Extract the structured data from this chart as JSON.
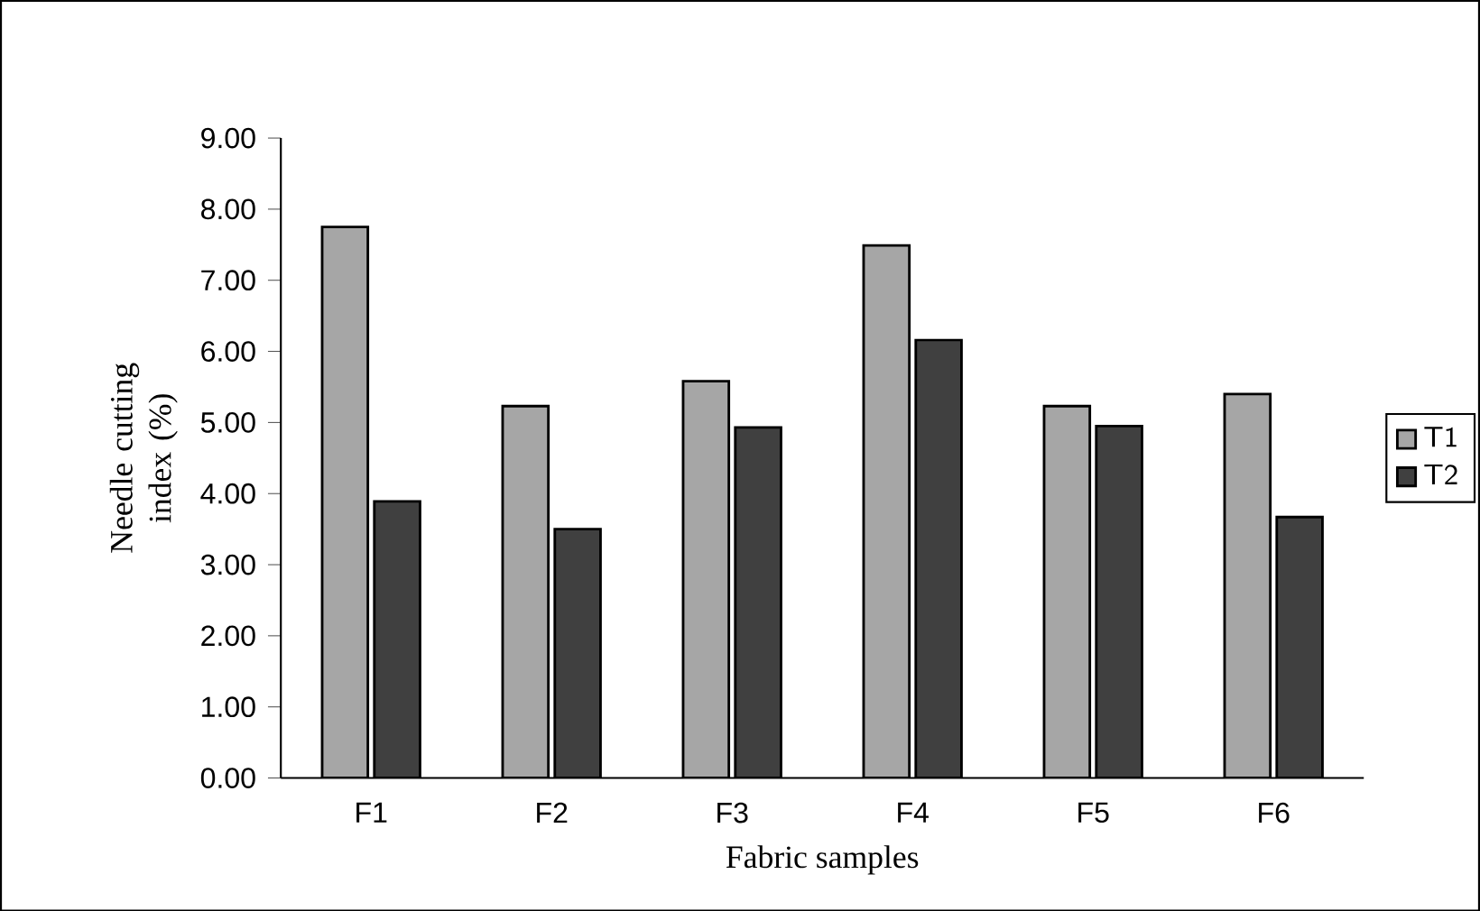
{
  "chart_data": {
    "type": "bar",
    "xlabel": "Fabric samples",
    "ylabel": "Needle cutting index (%)",
    "categories": [
      "F1",
      "F2",
      "F3",
      "F4",
      "F5",
      "F6"
    ],
    "series": [
      {
        "name": "T1",
        "color": "#a6a6a6",
        "values": [
          7.75,
          5.23,
          5.58,
          7.49,
          5.23,
          5.4
        ]
      },
      {
        "name": "T2",
        "color": "#404040",
        "values": [
          3.89,
          3.5,
          4.93,
          6.16,
          4.95,
          3.67
        ]
      }
    ],
    "ylim": [
      0,
      9
    ],
    "yticks": [
      {
        "value": 0,
        "label": "0.00"
      },
      {
        "value": 1,
        "label": "1.00"
      },
      {
        "value": 2,
        "label": "2.00"
      },
      {
        "value": 3,
        "label": "3.00"
      },
      {
        "value": 4,
        "label": "4.00"
      },
      {
        "value": 5,
        "label": "5.00"
      },
      {
        "value": 6,
        "label": "6.00"
      },
      {
        "value": 7,
        "label": "7.00"
      },
      {
        "value": 8,
        "label": "8.00"
      },
      {
        "value": 9,
        "label": "9.00"
      }
    ],
    "grid": false,
    "legend": "right"
  }
}
